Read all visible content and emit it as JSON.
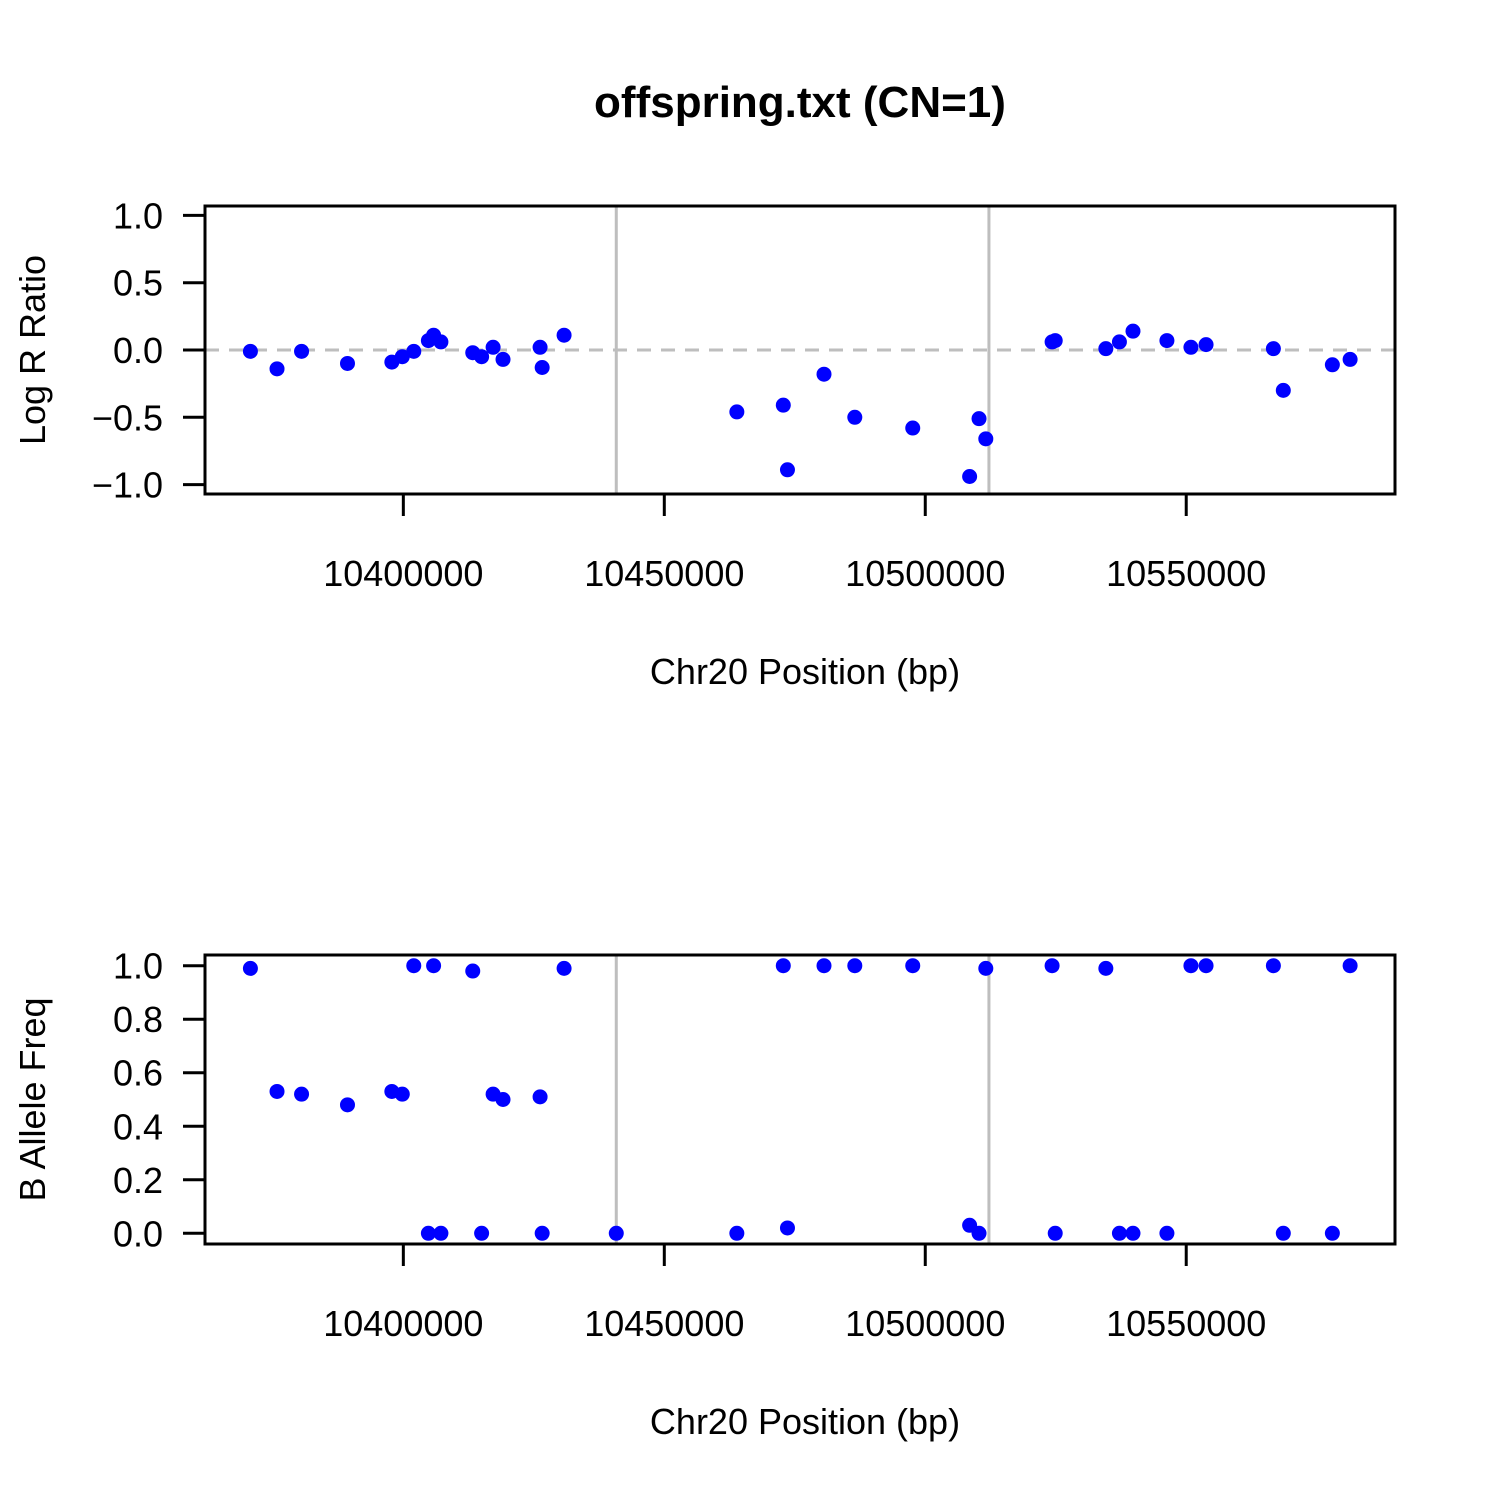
{
  "title": "offspring.txt (CN=1)",
  "colors": {
    "points": "#0000ff",
    "boundary": "#bebebe",
    "reference": "#bebebe"
  },
  "chart_data": [
    {
      "type": "scatter",
      "xlabel": "Chr20 Position (bp)",
      "ylabel": "Log R Ratio",
      "xlim": [
        10362000,
        10590000
      ],
      "ylim": [
        -1.07,
        1.07
      ],
      "x_ticks": [
        10400000,
        10450000,
        10500000,
        10550000
      ],
      "x_tick_labels": [
        "10400000",
        "10450000",
        "10500000",
        "10550000"
      ],
      "y_ticks": [
        -1.0,
        -0.5,
        0.0,
        0.5,
        1.0
      ],
      "y_tick_labels": [
        "−1.0",
        "−0.5",
        "0.0",
        "0.5",
        "1.0"
      ],
      "reference_line": {
        "y": 0.0,
        "style": "dashed"
      },
      "vertical_lines": [
        10440800,
        10512200
      ],
      "grid": false,
      "x": [
        10370700,
        10375800,
        10380500,
        10389300,
        10397800,
        10399800,
        10402000,
        10404800,
        10405800,
        10407200,
        10413300,
        10415000,
        10417200,
        10419100,
        10426200,
        10426600,
        10430800,
        10463900,
        10472800,
        10473600,
        10480600,
        10486500,
        10497600,
        10508500,
        10510300,
        10511600,
        10524300,
        10524900,
        10534600,
        10537200,
        10539800,
        10546300,
        10550900,
        10553800,
        10566700,
        10568600,
        10578000,
        10581400
      ],
      "y": [
        -0.01,
        -0.14,
        -0.01,
        -0.1,
        -0.09,
        -0.05,
        -0.01,
        0.07,
        0.11,
        0.06,
        -0.02,
        -0.05,
        0.02,
        -0.07,
        0.02,
        -0.13,
        0.11,
        -0.46,
        -0.41,
        -0.89,
        -0.18,
        -0.5,
        -0.58,
        -0.94,
        -0.51,
        -0.66,
        0.06,
        0.07,
        0.01,
        0.06,
        0.14,
        0.07,
        0.02,
        0.04,
        0.01,
        -0.3,
        -0.11,
        -0.07
      ]
    },
    {
      "type": "scatter",
      "xlabel": "Chr20 Position (bp)",
      "ylabel": "B Allele Freq",
      "xlim": [
        10362000,
        10590000
      ],
      "ylim": [
        -0.04,
        1.04
      ],
      "x_ticks": [
        10400000,
        10450000,
        10500000,
        10550000
      ],
      "x_tick_labels": [
        "10400000",
        "10450000",
        "10500000",
        "10550000"
      ],
      "y_ticks": [
        0.0,
        0.2,
        0.4,
        0.6,
        0.8,
        1.0
      ],
      "y_tick_labels": [
        "0.0",
        "0.2",
        "0.4",
        "0.6",
        "0.8",
        "1.0"
      ],
      "vertical_lines": [
        10440800,
        10512200
      ],
      "grid": false,
      "x": [
        10370700,
        10375800,
        10380500,
        10389300,
        10397800,
        10399800,
        10402000,
        10404800,
        10405800,
        10407200,
        10413300,
        10415000,
        10417200,
        10419100,
        10426200,
        10426600,
        10430800,
        10440800,
        10463900,
        10472800,
        10473600,
        10480600,
        10486500,
        10497600,
        10508500,
        10510300,
        10511600,
        10524300,
        10524900,
        10534600,
        10537200,
        10539800,
        10546300,
        10550900,
        10553800,
        10566700,
        10568600,
        10578000,
        10581400
      ],
      "y": [
        0.99,
        0.53,
        0.52,
        0.48,
        0.53,
        0.52,
        1.0,
        0.0,
        1.0,
        0.0,
        0.98,
        0.0,
        0.52,
        0.5,
        0.51,
        0.0,
        0.99,
        0.0,
        0.0,
        1.0,
        0.02,
        1.0,
        1.0,
        1.0,
        0.03,
        0.0,
        0.99,
        1.0,
        0.0,
        0.99,
        0.0,
        0.0,
        0.0,
        1.0,
        1.0,
        1.0,
        0.0,
        0.0,
        1.0
      ]
    }
  ]
}
